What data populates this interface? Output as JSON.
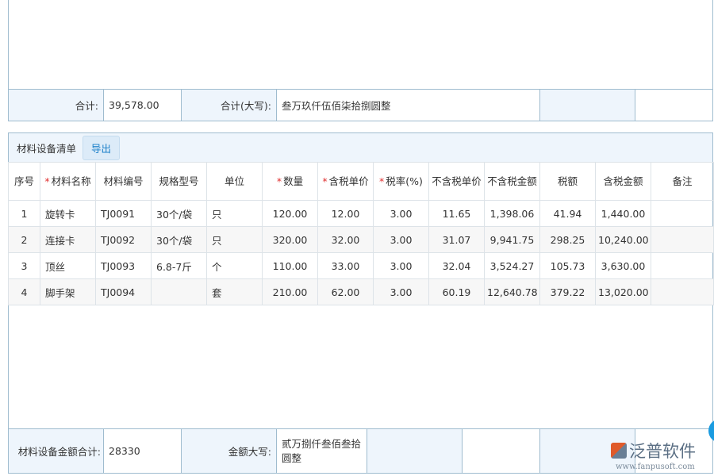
{
  "summary": {
    "total_label": "合计:",
    "total_value": "39,578.00",
    "total_upper_label": "合计(大写):",
    "total_upper_value": "叁万玖仟伍佰柒拾捌圆整"
  },
  "section": {
    "title": "材料设备清单",
    "export_label": "导出"
  },
  "table": {
    "headers": [
      {
        "label": "序号",
        "required": false
      },
      {
        "label": "材料名称",
        "required": true
      },
      {
        "label": "材料编号",
        "required": false
      },
      {
        "label": "规格型号",
        "required": false
      },
      {
        "label": "单位",
        "required": false
      },
      {
        "label": "数量",
        "required": true
      },
      {
        "label": "含税单价",
        "required": true
      },
      {
        "label": "税率(%)",
        "required": true
      },
      {
        "label": "不含税单价",
        "required": false
      },
      {
        "label": "不含税金额",
        "required": false
      },
      {
        "label": "税额",
        "required": false
      },
      {
        "label": "含税金额",
        "required": false
      },
      {
        "label": "备注",
        "required": false
      }
    ],
    "rows": [
      [
        "1",
        "旋转卡",
        "TJ0091",
        "30个/袋",
        "只",
        "120.00",
        "12.00",
        "3.00",
        "11.65",
        "1,398.06",
        "41.94",
        "1,440.00",
        ""
      ],
      [
        "2",
        "连接卡",
        "TJ0092",
        "30个/袋",
        "只",
        "320.00",
        "32.00",
        "3.00",
        "31.07",
        "9,941.75",
        "298.25",
        "10,240.00",
        ""
      ],
      [
        "3",
        "顶丝",
        "TJ0093",
        "6.8-7斤",
        "个",
        "110.00",
        "33.00",
        "3.00",
        "32.04",
        "3,524.27",
        "105.73",
        "3,630.00",
        ""
      ],
      [
        "4",
        "脚手架",
        "TJ0094",
        "",
        "套",
        "210.00",
        "62.00",
        "3.00",
        "60.19",
        "12,640.78",
        "379.22",
        "13,020.00",
        ""
      ]
    ]
  },
  "footer": {
    "amount_label": "材料设备金额合计:",
    "amount_value": "28330",
    "upper_label": "金额大写:",
    "upper_value": "贰万捌仟叁佰叁拾圆整"
  },
  "logo": {
    "text": "泛普软件",
    "url": "www.fanpusoft.com"
  },
  "colors": {
    "border": "#9fbccf",
    "label_bg": "#eef5fc",
    "required": "#e03030",
    "accent": "#1a7fc9"
  }
}
